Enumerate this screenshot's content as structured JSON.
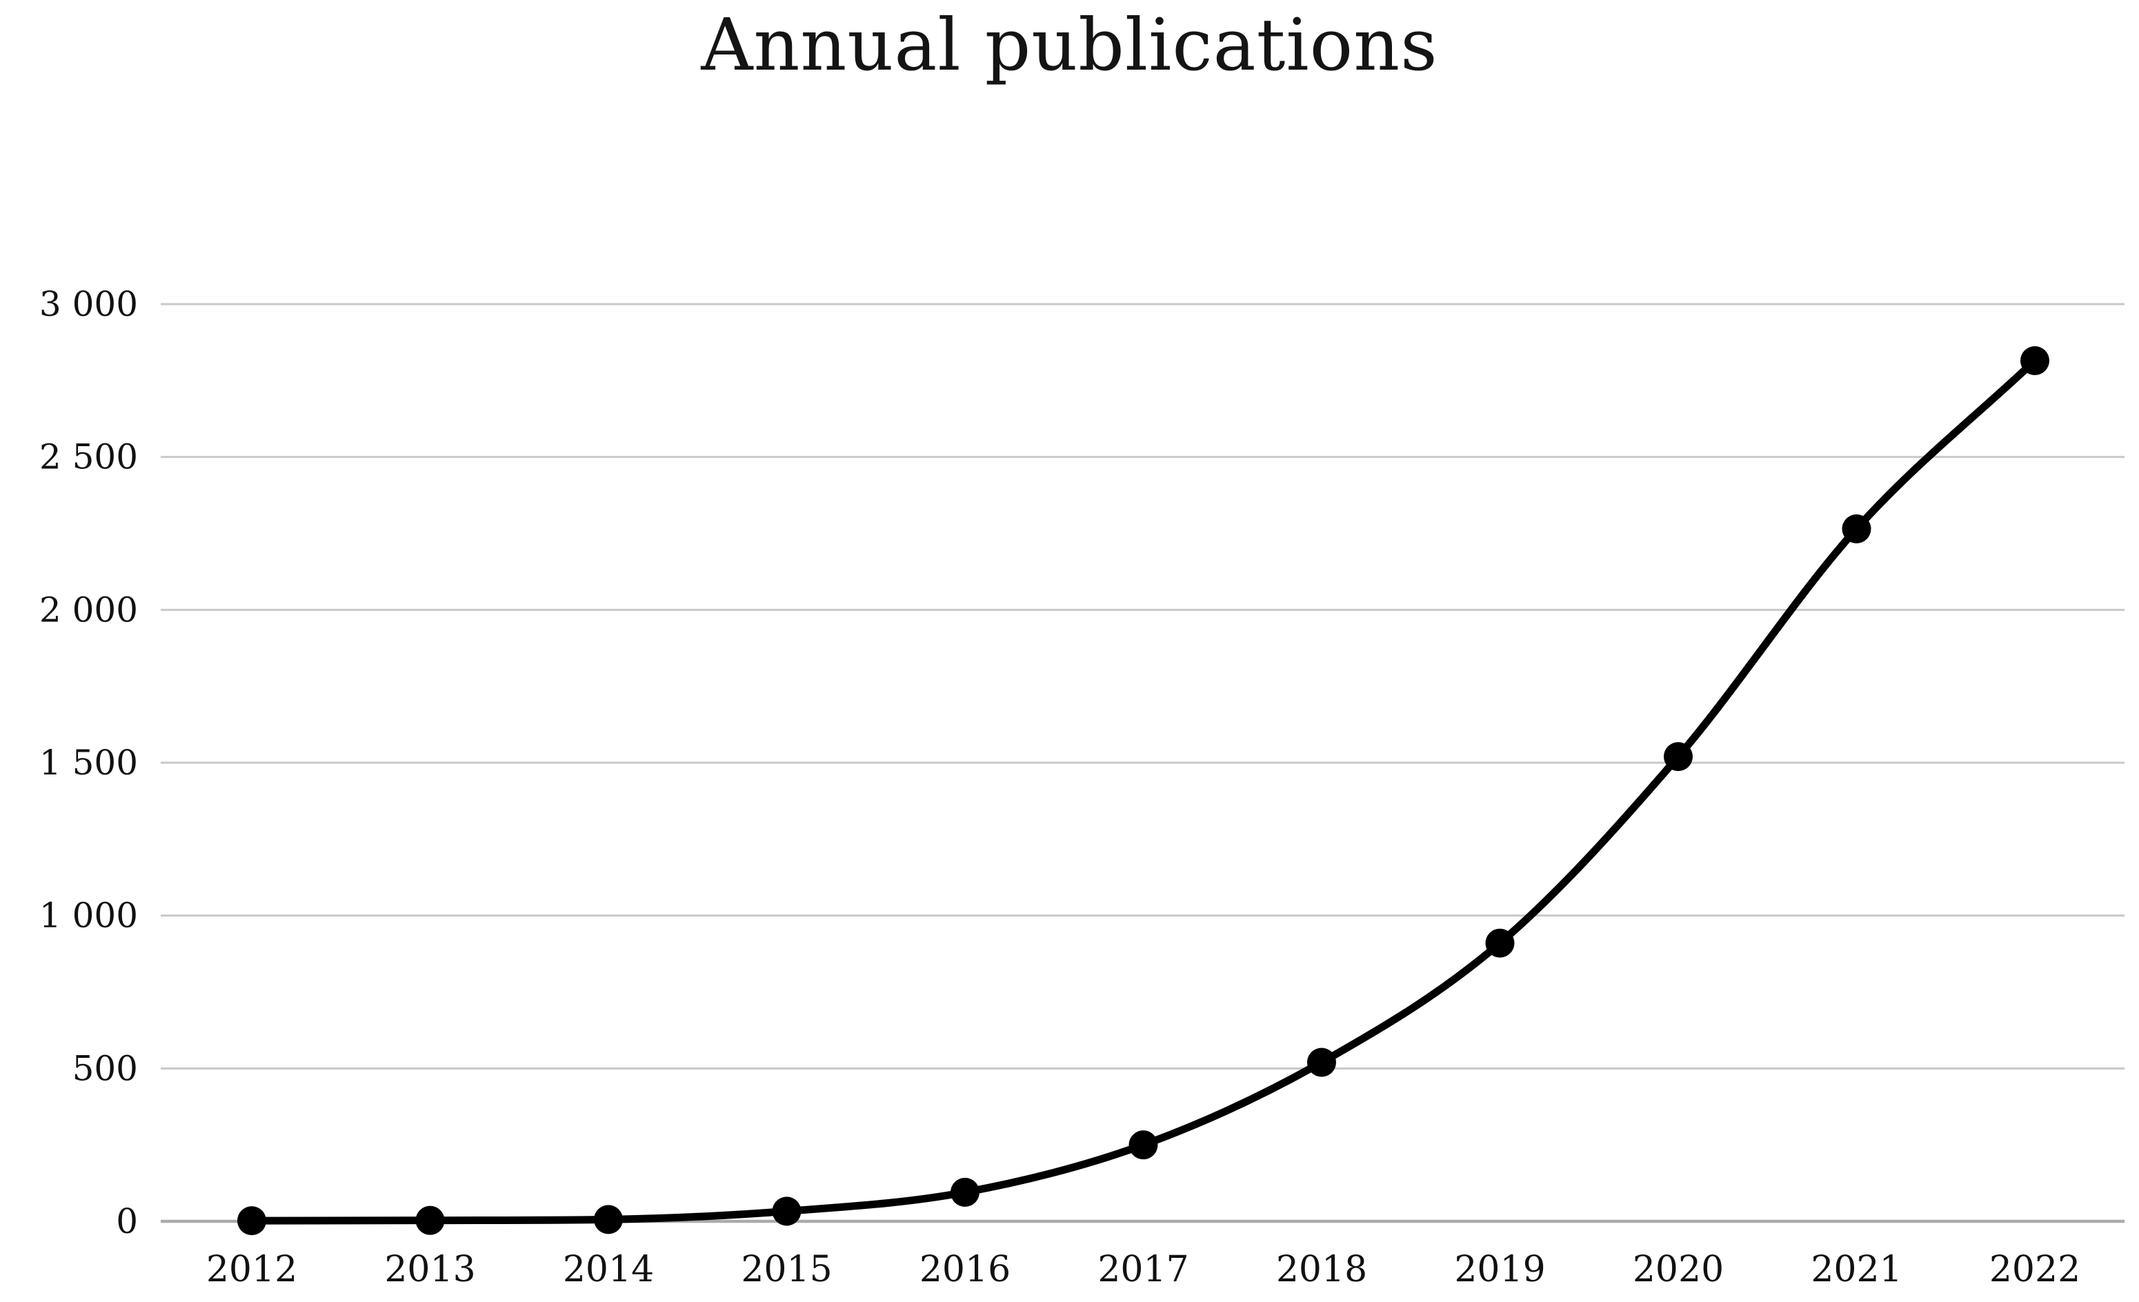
{
  "page": {
    "title": "Annual publications"
  },
  "chart_data": {
    "type": "line",
    "title": "Annual publications",
    "xlabel": "",
    "ylabel": "",
    "categories": [
      "2012",
      "2013",
      "2014",
      "2015",
      "2016",
      "2017",
      "2018",
      "2019",
      "2020",
      "2021",
      "2022"
    ],
    "series": [
      {
        "name": "Annual publications",
        "values": [
          2,
          3,
          6,
          33,
          95,
          250,
          520,
          910,
          1520,
          2265,
          2815
        ]
      }
    ],
    "ylim": [
      0,
      3000
    ],
    "ytick_values": [
      0,
      500,
      1000,
      1500,
      2000,
      2500,
      3000
    ],
    "ytick_labels": [
      "0",
      "500",
      "1 000",
      "1 500",
      "2 000",
      "2 500",
      "3 000"
    ],
    "grid": true,
    "legend": false,
    "marker": "circle",
    "colors": {
      "line": "#000000",
      "marker": "#000000",
      "grid": "#c9c9c9",
      "zero_line": "#ababab",
      "text": "#111111",
      "background": "#ffffff"
    }
  }
}
